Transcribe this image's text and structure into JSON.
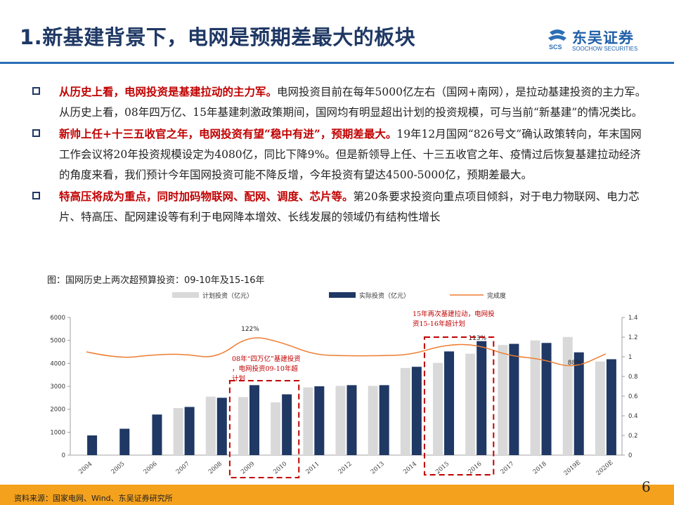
{
  "header": {
    "title": "1.新基建背景下，电网是预期差最大的板块",
    "logo_cn": "东吴证券",
    "logo_en": "SOOCHOW SECURITIES"
  },
  "bullets": [
    {
      "highlight": "从历史上看，电网投资是基建拉动的主力军。",
      "text": "电网投资目前在每年5000亿左右（国网+南网），是拉动基建投资的主力军。从历史上看，08年四万亿、15年基建刺激政策期间，国网均有明显超出计划的投资规模，可与当前“新基建”的情况类比。"
    },
    {
      "highlight": "新帅上任+十三五收官之年，电网投资有望“稳中有进”，预期差最大。",
      "text": "19年12月国网“826号文”确认政策转向，年末国网工作会议将20年投资规模设定为4080亿，同比下降9%。但是新领导上任、十三五收官之年、疫情过后恢复基建拉动经济的角度来看，我们预计今年国网投资可能不降反增，今年投资有望达4500-5000亿，预期差最大。"
    },
    {
      "highlight": "特高压将成为重点，同时加码物联网、配网、调度、芯片等。",
      "text": "第20条要求投资向重点项目倾斜，对于电力物联网、电力芯片、特高压、配网建设等有利于电网降本增效、长线发展的领域仍有结构性增长"
    }
  ],
  "figure": {
    "caption": "图：国网历史上两次超预算投资：09-10年及15-16年"
  },
  "chart_data": {
    "type": "bar",
    "categories": [
      "2004",
      "2005",
      "2006",
      "2007",
      "2008",
      "2009",
      "2010",
      "2011",
      "2012",
      "2013",
      "2014",
      "2015",
      "2016",
      "2017",
      "2018",
      "2019E",
      "2020E"
    ],
    "series": [
      {
        "name": "计划投资（亿元）",
        "color": "#d9d9d9",
        "values": [
          null,
          null,
          null,
          2050,
          2550,
          2530,
          2300,
          2950,
          3020,
          3020,
          3800,
          4020,
          4420,
          4800,
          5000,
          5150,
          4080
        ]
      },
      {
        "name": "实际投资（亿元）",
        "color": "#1f3864",
        "values": [
          860,
          1150,
          1770,
          2100,
          2500,
          3050,
          2650,
          3000,
          3050,
          3050,
          3850,
          4520,
          4970,
          4850,
          4890,
          4480,
          4180
        ]
      },
      {
        "name": "完成度",
        "color": "#ed7d31",
        "type": "line",
        "axis": "right",
        "values": [
          1.05,
          0.98,
          1.02,
          1.03,
          0.98,
          1.22,
          1.15,
          1.02,
          1.01,
          1.01,
          1.02,
          1.12,
          1.13,
          1.01,
          0.98,
          0.88,
          1.03
        ]
      }
    ],
    "y_left": {
      "min": 0,
      "max": 6000,
      "ticks": [
        "0",
        "1000",
        "2000",
        "3000",
        "4000",
        "5000",
        "6000"
      ]
    },
    "y_right": {
      "min": 0,
      "max": 1.4,
      "ticks": [
        "0",
        "0.2",
        "0.4",
        "0.6",
        "0.8",
        "1",
        "1.2",
        "1.4"
      ]
    },
    "data_labels": [
      "122%",
      "113%",
      "88%"
    ],
    "annotations": [
      "08年“四万亿”基建投资，电网投资09-10年超计划",
      "15年再次基建拉动，电网投资15-16年超计划"
    ],
    "legend_position": "top"
  },
  "footer": {
    "source": "资料来源：国家电网、Wind、东吴证券研究所",
    "page": "6"
  }
}
